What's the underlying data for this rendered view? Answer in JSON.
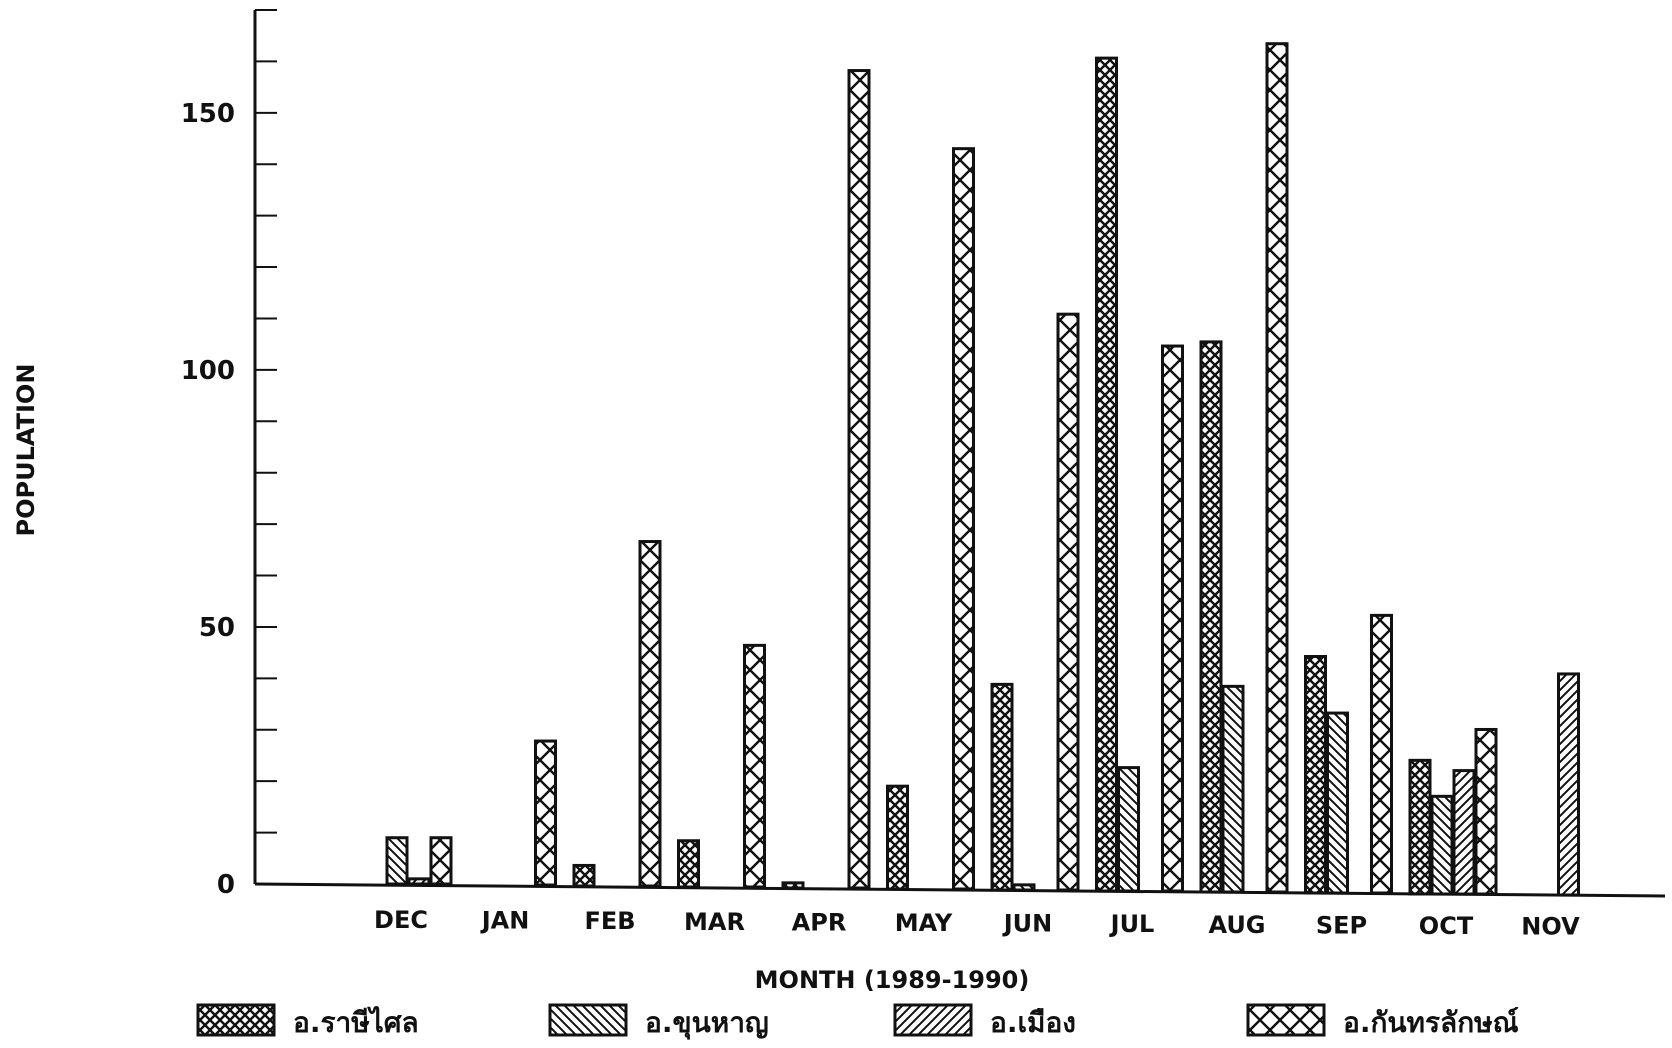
{
  "chart_data": {
    "type": "bar",
    "title": "",
    "xlabel": "MONTH (1989-1990)",
    "ylabel": "POPULATION",
    "ylim": [
      0,
      170
    ],
    "yticks": [
      0,
      50,
      100,
      150
    ],
    "grid": false,
    "legend_position": "bottom",
    "categories": [
      "DEC",
      "JAN",
      "FEB",
      "MAR",
      "APR",
      "MAY",
      "JUN",
      "JUL",
      "AUG",
      "SEP",
      "OCT",
      "NOV"
    ],
    "series": [
      {
        "name": "อ.ราษีไศล",
        "pattern": "dense-crosshatch",
        "values": [
          0,
          0,
          4,
          9,
          1,
          20,
          40,
          162,
          107,
          46,
          26,
          0
        ]
      },
      {
        "name": "อ.ขุนหาญ",
        "pattern": "backslash-hatch",
        "values": [
          9,
          0,
          0,
          0,
          0,
          0,
          1,
          24,
          40,
          35,
          19,
          0
        ]
      },
      {
        "name": "อ.เมือง",
        "pattern": "forward-hatch",
        "values": [
          1,
          0,
          0,
          0,
          0,
          0,
          0,
          0,
          0,
          0,
          24,
          43
        ]
      },
      {
        "name": "อ.กันทรลักษณ์",
        "pattern": "open-crosshatch",
        "values": [
          9,
          28,
          67,
          47,
          159,
          144,
          112,
          106,
          165,
          54,
          32,
          0
        ]
      }
    ]
  }
}
